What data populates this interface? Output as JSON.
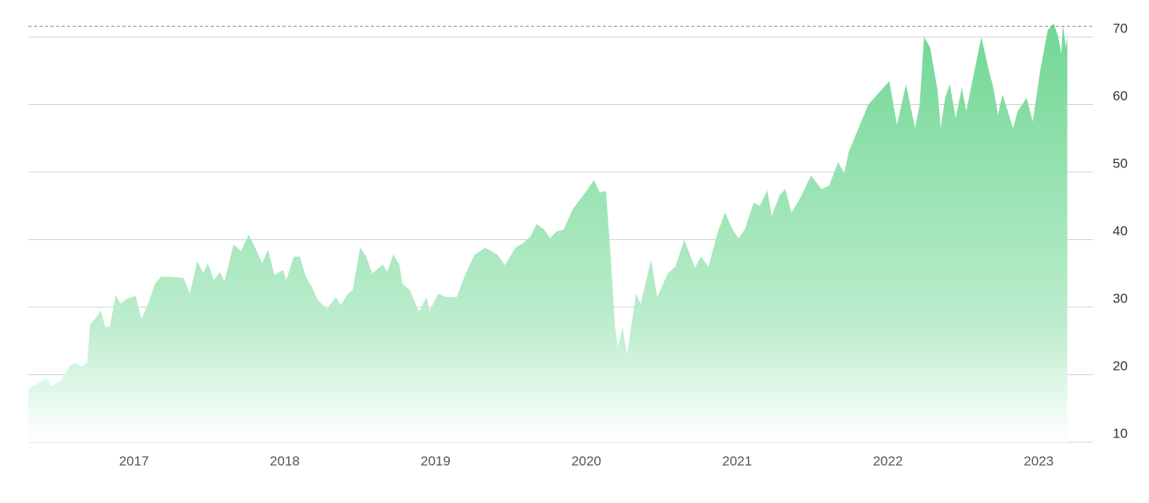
{
  "chart_data": {
    "type": "area",
    "x": [
      2016.3,
      2016.35,
      2016.42,
      2016.45,
      2016.52,
      2016.57,
      2016.61,
      2016.65,
      2016.69,
      2016.71,
      2016.74,
      2016.78,
      2016.81,
      2016.84,
      2016.88,
      2016.91,
      2016.95,
      2017.01,
      2017.05,
      2017.09,
      2017.14,
      2017.18,
      2017.25,
      2017.33,
      2017.37,
      2017.42,
      2017.46,
      2017.49,
      2017.53,
      2017.57,
      2017.6,
      2017.66,
      2017.71,
      2017.76,
      2017.79,
      2017.85,
      2017.89,
      2017.93,
      2017.99,
      2018.01,
      2018.06,
      2018.1,
      2018.14,
      2018.18,
      2018.22,
      2018.28,
      2018.34,
      2018.37,
      2018.42,
      2018.45,
      2018.5,
      2018.54,
      2018.58,
      2018.65,
      2018.68,
      2018.72,
      2018.76,
      2018.78,
      2018.83,
      2018.89,
      2018.94,
      2018.96,
      2019.02,
      2019.07,
      2019.14,
      2019.2,
      2019.26,
      2019.33,
      2019.41,
      2019.46,
      2019.53,
      2019.58,
      2019.63,
      2019.67,
      2019.72,
      2019.76,
      2019.8,
      2019.85,
      2019.91,
      2019.96,
      2020.01,
      2020.05,
      2020.09,
      2020.13,
      2020.16,
      2020.19,
      2020.21,
      2020.24,
      2020.27,
      2020.33,
      2020.36,
      2020.43,
      2020.47,
      2020.54,
      2020.59,
      2020.65,
      2020.72,
      2020.76,
      2020.81,
      2020.87,
      2020.92,
      2020.97,
      2021.01,
      2021.05,
      2021.11,
      2021.15,
      2021.2,
      2021.23,
      2021.28,
      2021.32,
      2021.36,
      2021.41,
      2021.49,
      2021.56,
      2021.61,
      2021.67,
      2021.71,
      2021.74,
      2021.87,
      2022.01,
      2022.06,
      2022.12,
      2022.18,
      2022.21,
      2022.24,
      2022.28,
      2022.33,
      2022.35,
      2022.38,
      2022.41,
      2022.45,
      2022.49,
      2022.52,
      2022.56,
      2022.62,
      2022.67,
      2022.7,
      2022.73,
      2022.76,
      2022.83,
      2022.86,
      2022.92,
      2022.96,
      2023.01,
      2023.06,
      2023.1,
      2023.13,
      2023.15,
      2023.16,
      2023.18,
      2023.19
    ],
    "values": [
      18,
      18.5,
      19.5,
      18.3,
      19.2,
      21.2,
      21.8,
      21.2,
      21.8,
      27.5,
      28.2,
      29.5,
      27,
      27.2,
      31.8,
      30.5,
      31.2,
      31.7,
      28.3,
      30.3,
      33.5,
      34.5,
      34.5,
      34.3,
      32,
      36.8,
      35,
      36.5,
      34,
      35.2,
      33.8,
      39.3,
      38.3,
      40.7,
      39.5,
      36.5,
      38.5,
      34.8,
      35.5,
      34,
      37.5,
      37.5,
      34.5,
      33,
      31,
      29.8,
      31.5,
      30.3,
      32,
      32.5,
      38.8,
      37.5,
      35,
      36.3,
      35.2,
      37.8,
      36.3,
      33.5,
      32.5,
      29.3,
      31.5,
      29.5,
      32,
      31.5,
      31.5,
      35,
      37.8,
      38.8,
      37.8,
      36.2,
      38.8,
      39.5,
      40.5,
      42.3,
      41.5,
      40.2,
      41.2,
      41.5,
      44.5,
      46,
      47.5,
      48.8,
      47,
      47.2,
      38,
      27,
      24,
      27,
      23,
      32,
      30.5,
      37,
      31.5,
      35,
      36,
      40,
      35.8,
      37.5,
      36,
      41,
      44,
      41.5,
      40.2,
      41.5,
      45.5,
      45,
      47.3,
      43.5,
      46.5,
      47.5,
      44,
      45.8,
      49.5,
      47.5,
      48,
      51.5,
      49.8,
      53,
      60,
      63.5,
      57,
      63,
      56.5,
      60,
      70,
      68.5,
      62,
      56.5,
      61,
      63,
      58,
      62.5,
      59,
      63.5,
      70,
      65,
      62.5,
      58.5,
      61.5,
      56.5,
      59,
      61,
      57.5,
      65,
      71,
      72,
      70,
      67.5,
      71.8,
      68.5,
      70
    ],
    "color": "#72d896",
    "reference_line": {
      "value": 71.6,
      "style": "dashed"
    },
    "xlim": [
      2016.3,
      2023.36
    ],
    "xticks": [
      2017,
      2018,
      2019,
      2020,
      2021,
      2022,
      2023
    ],
    "ylim": [
      10,
      72.5
    ],
    "yticks": [
      10,
      20,
      30,
      40,
      50,
      60,
      70
    ],
    "grid": true,
    "y_axis_side": "right"
  }
}
